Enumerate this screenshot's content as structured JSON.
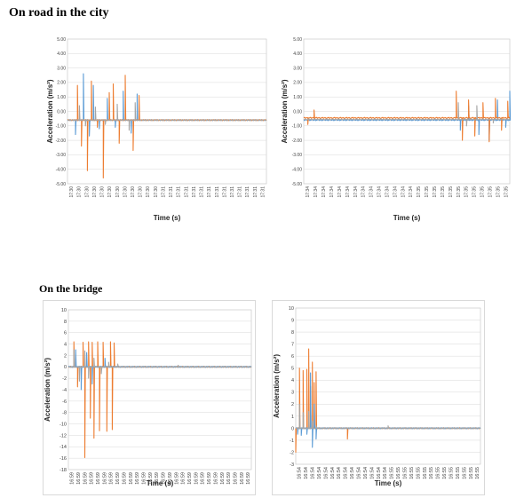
{
  "sections": {
    "city_title": "On road in the city",
    "bridge_title": "On the bridge"
  },
  "colors": {
    "orange": "#ED7D31",
    "blue": "#5B9BD5",
    "gray": "#A5A5A5",
    "grid": "#D9D9D9"
  },
  "chart_data": [
    {
      "type": "line",
      "xlabel": "Time (s)",
      "ylabel": "Acceleration (m/s²)",
      "ylim": [
        -5,
        5
      ],
      "yticks": [
        5,
        4,
        3,
        2,
        1,
        0,
        -1,
        -2,
        -3,
        -4,
        -5
      ],
      "ytick_labels": [
        "5.00",
        "4.00",
        "3.00",
        "2.00",
        "1.00",
        "0.00",
        "-1.00",
        "-2.00",
        "-3.00",
        "-4.00",
        "-5.00"
      ],
      "x_tick_labels": [
        "17:30",
        "17:30",
        "17:30",
        "17:30",
        "17:30",
        "17:30",
        "17:30",
        "17:30",
        "17:30",
        "17:30",
        "17:30",
        "17:30",
        "17:31",
        "17:31",
        "17:31",
        "17:31",
        "17:31",
        "17:31",
        "17:31",
        "17:31",
        "17:31",
        "17:31",
        "17:31",
        "17:31",
        "17:31",
        "17:31"
      ],
      "series": [
        {
          "color": "#5B9BD5",
          "baseline": -0.6,
          "events": [
            [
              0.04,
              -1.6
            ],
            [
              0.08,
              2.6
            ],
            [
              0.11,
              -1.7
            ],
            [
              0.13,
              1.8
            ],
            [
              0.16,
              -1.2
            ],
            [
              0.2,
              0.9
            ],
            [
              0.24,
              -1.1
            ],
            [
              0.28,
              1.4
            ],
            [
              0.32,
              -1.5
            ],
            [
              0.35,
              1.2
            ]
          ]
        },
        {
          "color": "#ED7D31",
          "baseline": -0.6,
          "events": [
            [
              0.05,
              1.8
            ],
            [
              0.07,
              -2.4
            ],
            [
              0.1,
              -4.1
            ],
            [
              0.12,
              2.1
            ],
            [
              0.15,
              -1.1
            ],
            [
              0.18,
              -4.6
            ],
            [
              0.21,
              1.3
            ],
            [
              0.23,
              1.9
            ],
            [
              0.26,
              -2.2
            ],
            [
              0.29,
              2.5
            ],
            [
              0.33,
              -2.7
            ],
            [
              0.36,
              1.1
            ]
          ]
        },
        {
          "color": "#A5A5A5",
          "baseline": -0.6,
          "events": [
            [
              0.06,
              0.4
            ],
            [
              0.09,
              -1.0
            ],
            [
              0.14,
              0.3
            ],
            [
              0.19,
              -0.9
            ],
            [
              0.25,
              0.5
            ],
            [
              0.31,
              -1.3
            ],
            [
              0.34,
              0.6
            ]
          ]
        }
      ]
    },
    {
      "type": "line",
      "xlabel": "Time (s)",
      "ylabel": "Acceleration (m/s²)",
      "ylim": [
        -5,
        5
      ],
      "yticks": [
        5,
        4,
        3,
        2,
        1,
        0,
        -1,
        -2,
        -3,
        -4,
        -5
      ],
      "ytick_labels": [
        "5.00",
        "4.00",
        "3.00",
        "2.00",
        "1.00",
        "0.00",
        "-1.00",
        "-2.00",
        "-3.00",
        "-4.00",
        "-5.00"
      ],
      "x_tick_labels": [
        "17:34",
        "17:34",
        "17:34",
        "17:34",
        "17:34",
        "17:34",
        "17:34",
        "17:34",
        "17:34",
        "17:34",
        "17:34",
        "17:34",
        "17:34",
        "17:34",
        "17:35",
        "17:35",
        "17:35",
        "17:35",
        "17:35",
        "17:35",
        "17:35",
        "17:35",
        "17:35",
        "17:35",
        "17:35",
        "17:35"
      ],
      "series": [
        {
          "color": "#5B9BD5",
          "baseline": -0.6,
          "events": [
            [
              0.76,
              -1.3
            ],
            [
              0.8,
              0.4
            ],
            [
              0.85,
              -1.6
            ],
            [
              0.9,
              -2.0
            ],
            [
              0.94,
              0.8
            ],
            [
              0.98,
              -1.1
            ],
            [
              1.0,
              1.4
            ]
          ]
        },
        {
          "color": "#ED7D31",
          "baseline": -0.45,
          "events": [
            [
              0.02,
              -0.9
            ],
            [
              0.05,
              0.1
            ],
            [
              0.74,
              1.4
            ],
            [
              0.77,
              -2.0
            ],
            [
              0.8,
              0.8
            ],
            [
              0.83,
              -1.7
            ],
            [
              0.87,
              0.6
            ],
            [
              0.9,
              -2.1
            ],
            [
              0.93,
              0.9
            ],
            [
              0.96,
              -1.3
            ],
            [
              0.99,
              0.7
            ]
          ]
        },
        {
          "color": "#A5A5A5",
          "baseline": -0.55,
          "events": [
            [
              0.75,
              0.6
            ],
            [
              0.79,
              -1.0
            ],
            [
              0.84,
              0.4
            ],
            [
              0.92,
              -0.8
            ]
          ]
        }
      ]
    },
    {
      "type": "line",
      "xlabel": "Time (s)",
      "ylabel": "Acceleration (m/s²)",
      "ylim": [
        -18,
        10
      ],
      "yticks": [
        10,
        8,
        6,
        4,
        2,
        0,
        -2,
        -4,
        -6,
        -8,
        -10,
        -12,
        -14,
        -16,
        -18
      ],
      "ytick_labels": [
        "10",
        "8",
        "6",
        "4",
        "2",
        "0",
        "-2",
        "-4",
        "-6",
        "-8",
        "-10",
        "-12",
        "-14",
        "-16",
        "-18"
      ],
      "x_tick_labels": [
        "16:59",
        "16:59",
        "16:59",
        "16:59",
        "16:59",
        "16:59",
        "16:59",
        "16:59",
        "16:59",
        "16:59",
        "16:59",
        "16:59",
        "16:59",
        "16:59",
        "16:59",
        "16:59",
        "16:59",
        "16:59",
        "16:59",
        "16:59",
        "16:59",
        "16:59",
        "16:59",
        "16:59",
        "16:59",
        "16:59",
        "16:59",
        "16:59"
      ],
      "series": [
        {
          "color": "#ED7D31",
          "baseline": 0,
          "events": [
            [
              0.03,
              4.4
            ],
            [
              0.05,
              -3.5
            ],
            [
              0.08,
              4.3
            ],
            [
              0.09,
              -15.9
            ],
            [
              0.11,
              4.4
            ],
            [
              0.12,
              -9.0
            ],
            [
              0.13,
              4.3
            ],
            [
              0.14,
              -12.5
            ],
            [
              0.16,
              4.4
            ],
            [
              0.17,
              -11.2
            ],
            [
              0.19,
              4.3
            ],
            [
              0.21,
              -11.3
            ],
            [
              0.23,
              4.4
            ],
            [
              0.24,
              -11.0
            ],
            [
              0.25,
              4.2
            ]
          ]
        },
        {
          "color": "#5B9BD5",
          "baseline": 0,
          "events": [
            [
              0.04,
              3.0
            ],
            [
              0.07,
              -4.0
            ],
            [
              0.1,
              2.5
            ],
            [
              0.13,
              -3.0
            ],
            [
              0.2,
              1.5
            ]
          ]
        },
        {
          "color": "#A5A5A5",
          "baseline": 0,
          "events": [
            [
              0.03,
              3.0
            ],
            [
              0.06,
              -2.5
            ],
            [
              0.09,
              2.8
            ],
            [
              0.11,
              -2.0
            ],
            [
              0.14,
              1.5
            ],
            [
              0.18,
              -1.2
            ],
            [
              0.22,
              0.8
            ],
            [
              0.27,
              0.5
            ],
            [
              0.6,
              0.3
            ]
          ]
        }
      ]
    },
    {
      "type": "line",
      "xlabel": "Time (s)",
      "ylabel": "Acceleration (m/s²)",
      "ylim": [
        -3,
        10
      ],
      "yticks": [
        10,
        9,
        8,
        7,
        6,
        5,
        4,
        3,
        2,
        1,
        0,
        -1,
        -2,
        -3
      ],
      "ytick_labels": [
        "10",
        "9",
        "8",
        "7",
        "6",
        "5",
        "4",
        "3",
        "2",
        "1",
        "0",
        "-1",
        "-2",
        "-3"
      ],
      "x_tick_labels": [
        "16:54",
        "16:54",
        "16:54",
        "16:54",
        "16:54",
        "16:54",
        "16:54",
        "16:54",
        "16:54",
        "16:54",
        "16:54",
        "16:54",
        "16:54",
        "16:54",
        "16:55",
        "16:55",
        "16:55",
        "16:55",
        "16:55",
        "16:55",
        "16:55",
        "16:55",
        "16:55",
        "16:55",
        "16:55",
        "16:55",
        "16:55",
        "16:55"
      ],
      "series": [
        {
          "color": "#ED7D31",
          "baseline": 0,
          "events": [
            [
              0.0,
              -2.0
            ],
            [
              0.02,
              5.0
            ],
            [
              0.04,
              4.8
            ],
            [
              0.06,
              4.9
            ],
            [
              0.07,
              6.6
            ],
            [
              0.08,
              3.5
            ],
            [
              0.09,
              5.5
            ],
            [
              0.1,
              3.8
            ],
            [
              0.11,
              4.7
            ],
            [
              0.28,
              -0.9
            ]
          ]
        },
        {
          "color": "#5B9BD5",
          "baseline": 0,
          "events": [
            [
              0.01,
              -0.5
            ],
            [
              0.03,
              -0.6
            ],
            [
              0.06,
              -0.5
            ],
            [
              0.08,
              4.6
            ],
            [
              0.09,
              -1.6
            ],
            [
              0.1,
              2.0
            ],
            [
              0.11,
              -0.9
            ]
          ]
        },
        {
          "color": "#A5A5A5",
          "baseline": 0,
          "events": [
            [
              0.02,
              2.0
            ],
            [
              0.04,
              1.3
            ],
            [
              0.07,
              1.4
            ],
            [
              0.09,
              0.6
            ],
            [
              0.11,
              0.2
            ],
            [
              0.5,
              0.2
            ]
          ]
        }
      ]
    }
  ]
}
